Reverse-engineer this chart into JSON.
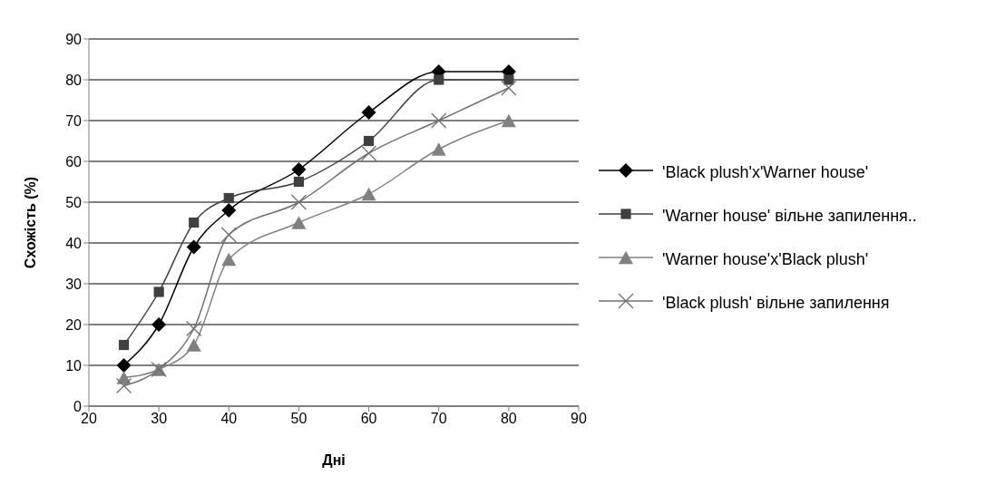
{
  "chart_data": {
    "type": "line",
    "xlabel": "Дні",
    "ylabel": "Схожість (%)",
    "x": [
      25,
      30,
      35,
      40,
      50,
      60,
      70,
      80
    ],
    "series": [
      {
        "name": "'Black plush'x'Warner house'",
        "color": "#000000",
        "marker": "diamond",
        "values": [
          10,
          20,
          39,
          48,
          58,
          72,
          82,
          82
        ]
      },
      {
        "name": "'Warner house' вільне запилення..",
        "color": "#404040",
        "marker": "square",
        "values": [
          15,
          28,
          45,
          51,
          55,
          65,
          80,
          80
        ]
      },
      {
        "name": "'Warner house'x'Black plush'",
        "color": "#808080",
        "marker": "triangle",
        "values": [
          7,
          9,
          15,
          36,
          45,
          52,
          63,
          70
        ]
      },
      {
        "name": "'Black plush' вільне запилення",
        "color": "#707070",
        "marker": "cross",
        "values": [
          5,
          9,
          19,
          42,
          50,
          62,
          70,
          78
        ]
      }
    ],
    "xlim": [
      20,
      90
    ],
    "xticks": [
      20,
      30,
      40,
      50,
      60,
      70,
      80,
      90
    ],
    "ylim": [
      0,
      90
    ],
    "yticks": [
      0,
      10,
      20,
      30,
      40,
      50,
      60,
      70,
      80,
      90
    ],
    "grid": "y",
    "legend": "right"
  }
}
